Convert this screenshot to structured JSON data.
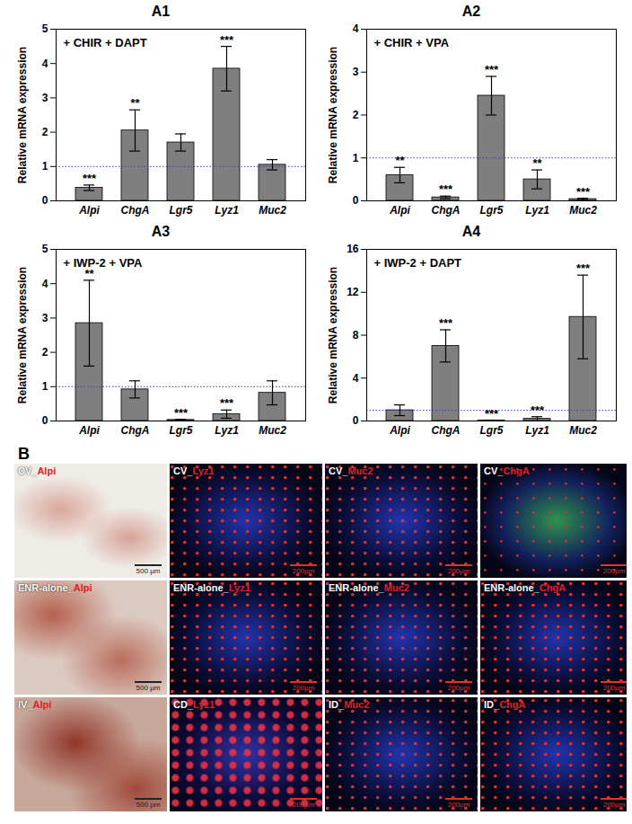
{
  "chart_data": [
    {
      "type": "bar",
      "title": "A1",
      "annotation": "+ CHIR + DAPT",
      "y_label": "Relative mRNA expression",
      "categories": [
        "Alpi",
        "ChgA",
        "Lgr5",
        "Lyz1",
        "Muc2"
      ],
      "values": [
        0.38,
        2.05,
        1.7,
        3.85,
        1.05
      ],
      "errors": [
        0.08,
        0.6,
        0.25,
        0.65,
        0.15
      ],
      "significance": [
        "***",
        "**",
        null,
        "***",
        null
      ],
      "reference_line": 1,
      "color": "#7f7f7f",
      "ylim": [
        0,
        5
      ],
      "yticks": [
        0,
        1,
        2,
        3,
        4,
        5
      ]
    },
    {
      "type": "bar",
      "title": "A2",
      "annotation": "+ CHIR + VPA",
      "y_label": "Relative mRNA expression",
      "categories": [
        "Alpi",
        "ChgA",
        "Lgr5",
        "Lyz1",
        "Muc2"
      ],
      "values": [
        0.6,
        0.08,
        2.45,
        0.5,
        0.04
      ],
      "errors": [
        0.18,
        0.03,
        0.45,
        0.22,
        0.02
      ],
      "significance": [
        "**",
        "***",
        "***",
        "**",
        "***"
      ],
      "reference_line": 1,
      "color": "#7f7f7f",
      "ylim": [
        0,
        4
      ],
      "yticks": [
        0,
        1,
        2,
        3,
        4
      ]
    },
    {
      "type": "bar",
      "title": "A3",
      "annotation": "+ IWP-2 + VPA",
      "y_label": "Relative mRNA expression",
      "categories": [
        "Alpi",
        "ChgA",
        "Lgr5",
        "Lyz1",
        "Muc2"
      ],
      "values": [
        2.85,
        0.92,
        0.03,
        0.2,
        0.82
      ],
      "errors": [
        1.25,
        0.25,
        0.02,
        0.12,
        0.35
      ],
      "significance": [
        "**",
        null,
        "***",
        "***",
        null
      ],
      "reference_line": 1,
      "color": "#7f7f7f",
      "ylim": [
        0,
        5
      ],
      "yticks": [
        0,
        1,
        2,
        3,
        4,
        5
      ]
    },
    {
      "type": "bar",
      "title": "A4",
      "annotation": "+ IWP-2 + DAPT",
      "y_label": "Relative mRNA expression",
      "categories": [
        "Alpi",
        "ChgA",
        "Lgr5",
        "Lyz1",
        "Muc2"
      ],
      "values": [
        1.0,
        7.0,
        0.05,
        0.2,
        9.7
      ],
      "errors": [
        0.5,
        1.5,
        0.03,
        0.2,
        3.9
      ],
      "significance": [
        null,
        "***",
        "***",
        "***",
        "***"
      ],
      "reference_line": 1,
      "color": "#7f7f7f",
      "ylim": [
        0,
        16
      ],
      "yticks": [
        0,
        4,
        8,
        12,
        16
      ]
    }
  ],
  "panel_b": {
    "label": "B",
    "images": [
      [
        {
          "prefix": "CV_",
          "marker": "Alpi",
          "scale_bar": "500 µm"
        },
        {
          "prefix": "CV_",
          "marker": "Lyz1",
          "scale_bar": "200µm"
        },
        {
          "prefix": "CV_",
          "marker": "Muc2",
          "scale_bar": "200µm"
        },
        {
          "prefix": "CV_",
          "marker": "ChgA",
          "scale_bar": "200µm"
        }
      ],
      [
        {
          "prefix": "ENR-alone_",
          "marker": "Alpi",
          "scale_bar": "500 µm"
        },
        {
          "prefix": "ENR-alone_",
          "marker": "Lyz1",
          "scale_bar": "200µm"
        },
        {
          "prefix": "ENR-alone_",
          "marker": "Muc2",
          "scale_bar": "200µm"
        },
        {
          "prefix": "ENR-alone_",
          "marker": "ChgA",
          "scale_bar": "200µm"
        }
      ],
      [
        {
          "prefix": "IV_",
          "marker": "Alpi",
          "scale_bar": "500 µm"
        },
        {
          "prefix": "CD_",
          "marker": "Lyz1",
          "scale_bar": "200µm"
        },
        {
          "prefix": "ID_",
          "marker": "Muc2",
          "scale_bar": "200µm"
        },
        {
          "prefix": "ID_",
          "marker": "ChgA",
          "scale_bar": "200µm"
        }
      ]
    ]
  }
}
